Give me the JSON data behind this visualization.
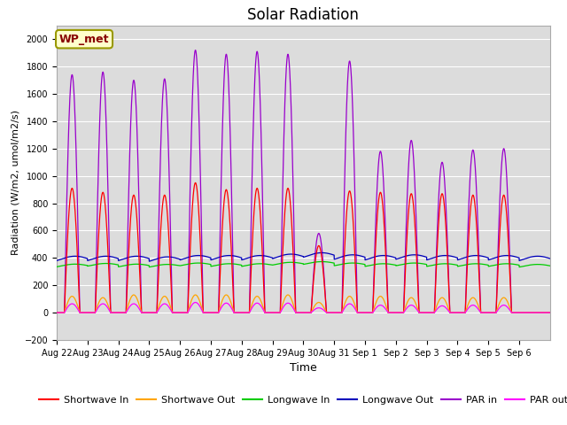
{
  "title": "Solar Radiation",
  "xlabel": "Time",
  "ylabel": "Radiation (W/m2, umol/m2/s)",
  "ylim": [
    -200,
    2100
  ],
  "yticks": [
    -200,
    0,
    200,
    400,
    600,
    800,
    1000,
    1200,
    1400,
    1600,
    1800,
    2000
  ],
  "station_label": "WP_met",
  "plot_bg_color": "#dcdcdc",
  "fig_bg_color": "#ffffff",
  "series_colors": {
    "Shortwave In": "#ff0000",
    "Shortwave Out": "#ffa500",
    "Longwave In": "#00cc00",
    "Longwave Out": "#0000bb",
    "PAR in": "#9900cc",
    "PAR out": "#ff00ff"
  },
  "n_days": 16,
  "days": [
    "Aug 22",
    "Aug 23",
    "Aug 24",
    "Aug 25",
    "Aug 26",
    "Aug 27",
    "Aug 28",
    "Aug 29",
    "Aug 30",
    "Aug 31",
    "Sep 1",
    "Sep 2",
    "Sep 3",
    "Sep 4",
    "Sep 5",
    "Sep 6"
  ],
  "sw_in_peaks": [
    910,
    880,
    860,
    860,
    950,
    900,
    910,
    910,
    490,
    890,
    880,
    870,
    870,
    860,
    860,
    0
  ],
  "sw_out_peaks": [
    120,
    110,
    130,
    120,
    130,
    130,
    120,
    130,
    75,
    120,
    120,
    110,
    110,
    110,
    110,
    0
  ],
  "lw_in_base": [
    340,
    345,
    340,
    338,
    348,
    343,
    343,
    353,
    358,
    348,
    343,
    348,
    343,
    343,
    343,
    338
  ],
  "lw_in_var": [
    15,
    15,
    15,
    15,
    15,
    15,
    15,
    15,
    15,
    15,
    15,
    15,
    15,
    15,
    15,
    15
  ],
  "lw_out_base": [
    388,
    388,
    388,
    383,
    393,
    393,
    393,
    403,
    413,
    398,
    393,
    398,
    393,
    393,
    393,
    388
  ],
  "lw_out_var": [
    25,
    25,
    25,
    25,
    25,
    25,
    25,
    25,
    25,
    25,
    25,
    25,
    25,
    25,
    25,
    25
  ],
  "par_in_peaks": [
    1740,
    1760,
    1700,
    1710,
    1920,
    1890,
    1910,
    1890,
    580,
    1840,
    1180,
    1260,
    1100,
    1190,
    1200,
    0
  ],
  "par_out_peaks": [
    65,
    65,
    65,
    65,
    75,
    70,
    70,
    70,
    35,
    65,
    55,
    55,
    50,
    55,
    55,
    0
  ],
  "line_width": 0.9,
  "title_fontsize": 12,
  "label_fontsize": 9,
  "tick_fontsize": 7,
  "legend_fontsize": 8
}
